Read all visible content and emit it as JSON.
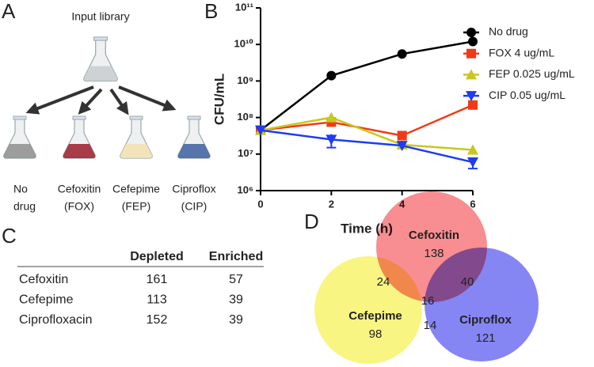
{
  "panel_labels": [
    "A",
    "B",
    "C",
    "D"
  ],
  "panel_a": {
    "source": "Input library",
    "flasks": [
      {
        "label": [
          "No",
          "drug"
        ]
      },
      {
        "label": [
          "Cefoxitin",
          "(FOX)"
        ]
      },
      {
        "label": [
          "Cefepime",
          "(FEP)"
        ]
      },
      {
        "label": [
          "Ciproflox",
          "(CIP)"
        ]
      }
    ]
  },
  "chart_data": {
    "type": "line",
    "x_label": "Time (h)",
    "y_label": "CFU/mL",
    "log_y": true,
    "x": [
      0,
      2,
      4,
      6
    ],
    "xlim": [
      0,
      6
    ],
    "xticks": [
      0,
      2,
      4,
      6
    ],
    "ylim": [
      1000000,
      100000000000
    ],
    "yticks": [
      {
        "value": 1000000,
        "label": "10⁶"
      },
      {
        "value": 10000000,
        "label": "10⁷"
      },
      {
        "value": 100000000,
        "label": "10⁸"
      },
      {
        "value": 1000000000,
        "label": "10⁹"
      },
      {
        "value": 10000000000,
        "label": "10¹⁰"
      },
      {
        "value": 100000000000,
        "label": "10¹¹"
      }
    ],
    "legend": "right",
    "series": [
      {
        "name": "No drug",
        "color": "#000000",
        "marker": "circle",
        "values": [
          45000000,
          1400000000,
          5500000000,
          12000000000
        ]
      },
      {
        "name": "FOX 4 ug/mL",
        "color": "#f03a17",
        "marker": "square",
        "values": [
          45000000,
          75000000,
          32000000,
          220000000
        ]
      },
      {
        "name": "FEP 0.025 ug/mL",
        "color": "#c8c81e",
        "marker": "triangle",
        "values": [
          45000000,
          100000000,
          18000000,
          13000000
        ]
      },
      {
        "name": "CIP 0.05 ug/mL",
        "color": "#1e3cf0",
        "marker": "triangle-down",
        "values": [
          45000000,
          25000000,
          17000000,
          6000000
        ],
        "errors": [
          null,
          10000000,
          null,
          2000000
        ]
      }
    ]
  },
  "table": {
    "columns": [
      "Depleted",
      "Enriched"
    ],
    "rows": [
      [
        "Cefoxitin",
        161,
        57
      ],
      [
        "Cefepime",
        113,
        39
      ],
      [
        "Ciprofloxacin",
        152,
        39
      ]
    ]
  },
  "venn": {
    "sets": [
      {
        "name": "Cefoxitin",
        "count": 138,
        "color": "#f5676d"
      },
      {
        "name": "Cefepime",
        "count": 98,
        "color": "#f5f25a"
      },
      {
        "name": "Ciproflox",
        "count": 121,
        "color": "#5e5cf0"
      }
    ],
    "overlaps": [
      {
        "sets": "Cefoxitin+Cefepime",
        "count": 24
      },
      {
        "sets": "Cefoxitin+Ciproflox",
        "count": 40
      },
      {
        "sets": "Cefepime+Ciproflox",
        "count": 14
      },
      {
        "sets": "all",
        "count": 16
      }
    ]
  }
}
